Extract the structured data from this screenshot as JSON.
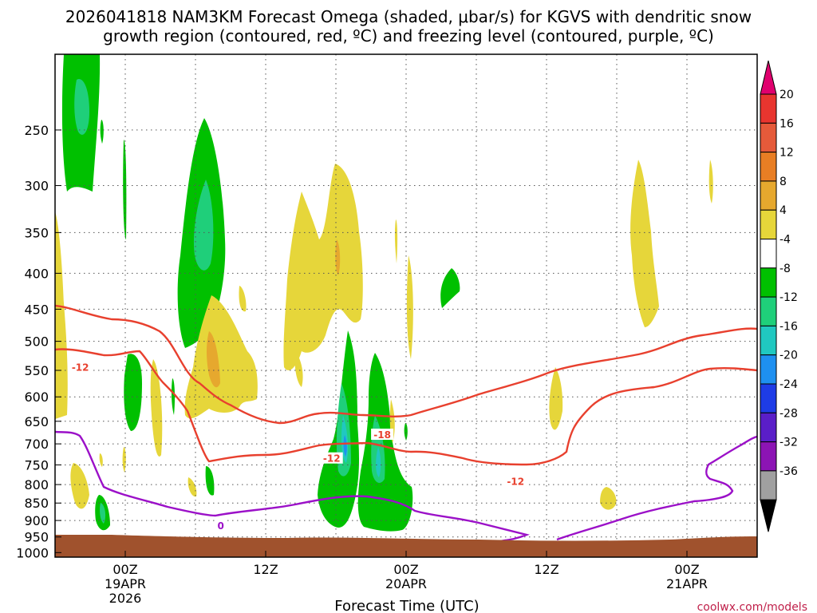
{
  "chart_data": {
    "type": "heatmap",
    "title_lines": [
      "2026041818 NAM3KM Forecast Omega (shaded, μbar/s) for KGVS with dendritic snow",
      "growth region (contoured, red, ºC) and freezing level (contoured, purple, ºC)"
    ],
    "xlabel": "Forecast Time (UTC)",
    "x_range_hours": [
      -5,
      45
    ],
    "x_ticks": [
      {
        "hour": 0,
        "lines": [
          "00Z",
          "19APR",
          "2026"
        ]
      },
      {
        "hour": 10,
        "lines": [
          "12Z"
        ]
      },
      {
        "hour": 20,
        "lines": [
          "00Z",
          "20APR"
        ]
      },
      {
        "hour": 30,
        "lines": [
          "12Z"
        ]
      },
      {
        "hour": 40,
        "lines": [
          "00Z",
          "21APR"
        ]
      }
    ],
    "y_ticks_hpa": [
      250,
      300,
      350,
      400,
      450,
      500,
      550,
      600,
      650,
      700,
      750,
      800,
      850,
      900,
      950,
      1000
    ],
    "y_range_hpa": [
      195,
      1015
    ],
    "colorbar": {
      "unit": "μbar/s",
      "labels": [
        "20",
        "16",
        "12",
        "8",
        "4",
        "-4",
        "-8",
        "-12",
        "-16",
        "-20",
        "-24",
        "-28",
        "-32",
        "-36"
      ],
      "bins": [
        {
          "color": "#e0006e"
        },
        {
          "color": "#e8352f"
        },
        {
          "color": "#e55a3a"
        },
        {
          "color": "#e87e24"
        },
        {
          "color": "#e6a82e"
        },
        {
          "color": "#e6d63a"
        },
        {
          "color": "#ffffff"
        },
        {
          "color": "#00c000"
        },
        {
          "color": "#1fcf7a"
        },
        {
          "color": "#20c8c0"
        },
        {
          "color": "#1e90f0"
        },
        {
          "color": "#1e3ce6"
        },
        {
          "color": "#5a1ec8"
        },
        {
          "color": "#8c14b4"
        },
        {
          "color": "#a0a0a0"
        },
        {
          "color": "#000000"
        }
      ]
    },
    "contour_labels": [
      {
        "text": "-12",
        "hour": -3.2,
        "hpa": 545,
        "kind": "dgz"
      },
      {
        "text": "-18",
        "hour": 18.3,
        "hpa": 680,
        "kind": "dgz"
      },
      {
        "text": "-12",
        "hour": 14.7,
        "hpa": 735,
        "kind": "dgz"
      },
      {
        "text": "-12",
        "hour": 27.8,
        "hpa": 792,
        "kind": "dgz"
      },
      {
        "text": "0",
        "hour": 6.8,
        "hpa": 917,
        "kind": "freezing"
      }
    ],
    "credit": "coolwx.com/models"
  },
  "colors": {
    "dgz_line": "#e8402e",
    "freezing_line": "#9b10c8",
    "ground": "#a0522d",
    "gridline": "#555555"
  }
}
